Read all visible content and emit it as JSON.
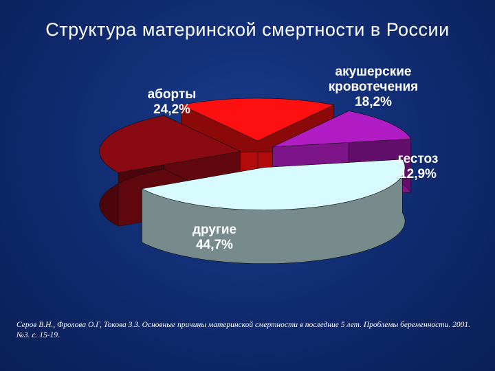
{
  "chart_data": {
    "type": "pie",
    "title": "Структура материнской смертности в России",
    "style": "3d-exploded",
    "slices": [
      {
        "label_lines": [
          "аборты",
          "24,2%"
        ],
        "value": 24.2,
        "color": "#8a0a14"
      },
      {
        "label_lines": [
          "акушерские",
          "кровотечения",
          "18,2%"
        ],
        "value": 18.2,
        "color": "#ff1010"
      },
      {
        "label_lines": [
          "гестоз",
          "12,9%"
        ],
        "value": 12.9,
        "color": "#b21cc4"
      },
      {
        "label_lines": [
          "другие",
          "44,7%"
        ],
        "value": 44.7,
        "color": "#d8fbff"
      }
    ]
  },
  "source_note": "Серов В.Н., Фролова О.Г, Токова З.З. Основные причины материнской смертности в последние 5 лет. Проблемы беременности. 2001. №3. с. 15-19."
}
